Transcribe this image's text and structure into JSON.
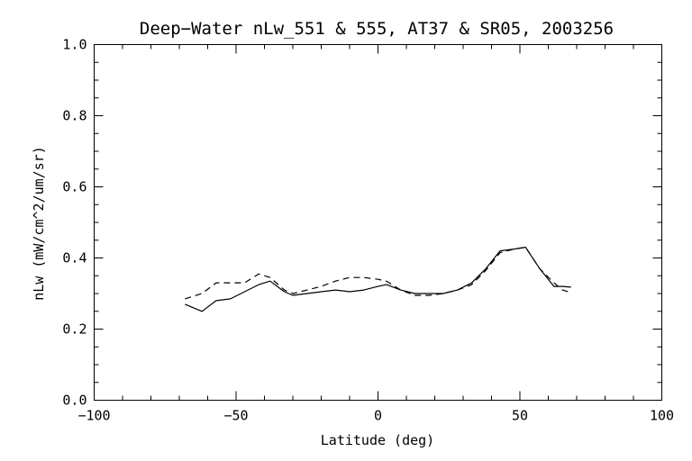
{
  "chart_data": {
    "type": "line",
    "title": "Deep−Water nLw_551 & 555, AT37 & SR05, 2003256",
    "xlabel": "Latitude (deg)",
    "ylabel": "nLw (mW/cm^2/um/sr)",
    "xlim": [
      -100,
      100
    ],
    "ylim": [
      0.0,
      1.0
    ],
    "xticks": [
      -100,
      -50,
      0,
      50,
      100
    ],
    "xtick_labels": [
      "−100",
      "−50",
      "0",
      "50",
      "100"
    ],
    "yticks": [
      0.0,
      0.2,
      0.4,
      0.6,
      0.8,
      1.0
    ],
    "ytick_labels": [
      "0.0",
      "0.2",
      "0.4",
      "0.6",
      "0.8",
      "1.0"
    ],
    "grid": false,
    "series": [
      {
        "style": "solid",
        "x": [
          -68,
          -62,
          -57,
          -52,
          -47,
          -42,
          -38,
          -33,
          -30,
          -25,
          -20,
          -15,
          -10,
          -5,
          0,
          3,
          8,
          13,
          18,
          23,
          28,
          33,
          38,
          43,
          48,
          52,
          57,
          62,
          65,
          68
        ],
        "y": [
          0.27,
          0.25,
          0.28,
          0.285,
          0.305,
          0.325,
          0.335,
          0.305,
          0.295,
          0.3,
          0.305,
          0.31,
          0.305,
          0.31,
          0.32,
          0.325,
          0.31,
          0.3,
          0.3,
          0.3,
          0.31,
          0.33,
          0.37,
          0.42,
          0.425,
          0.43,
          0.37,
          0.32,
          0.32,
          0.318
        ]
      },
      {
        "style": "dashed",
        "x": [
          -68,
          -62,
          -57,
          -52,
          -47,
          -42,
          -38,
          -33,
          -30,
          -25,
          -20,
          -15,
          -10,
          -5,
          0,
          3,
          8,
          13,
          18,
          23,
          28,
          33,
          38,
          43,
          48,
          52,
          57,
          62,
          65,
          67
        ],
        "y": [
          0.285,
          0.3,
          0.33,
          0.33,
          0.33,
          0.355,
          0.345,
          0.31,
          0.3,
          0.31,
          0.32,
          0.335,
          0.345,
          0.345,
          0.34,
          0.335,
          0.31,
          0.295,
          0.295,
          0.3,
          0.31,
          0.325,
          0.365,
          0.415,
          0.425,
          0.43,
          0.37,
          0.33,
          0.31,
          0.305
        ]
      }
    ]
  }
}
